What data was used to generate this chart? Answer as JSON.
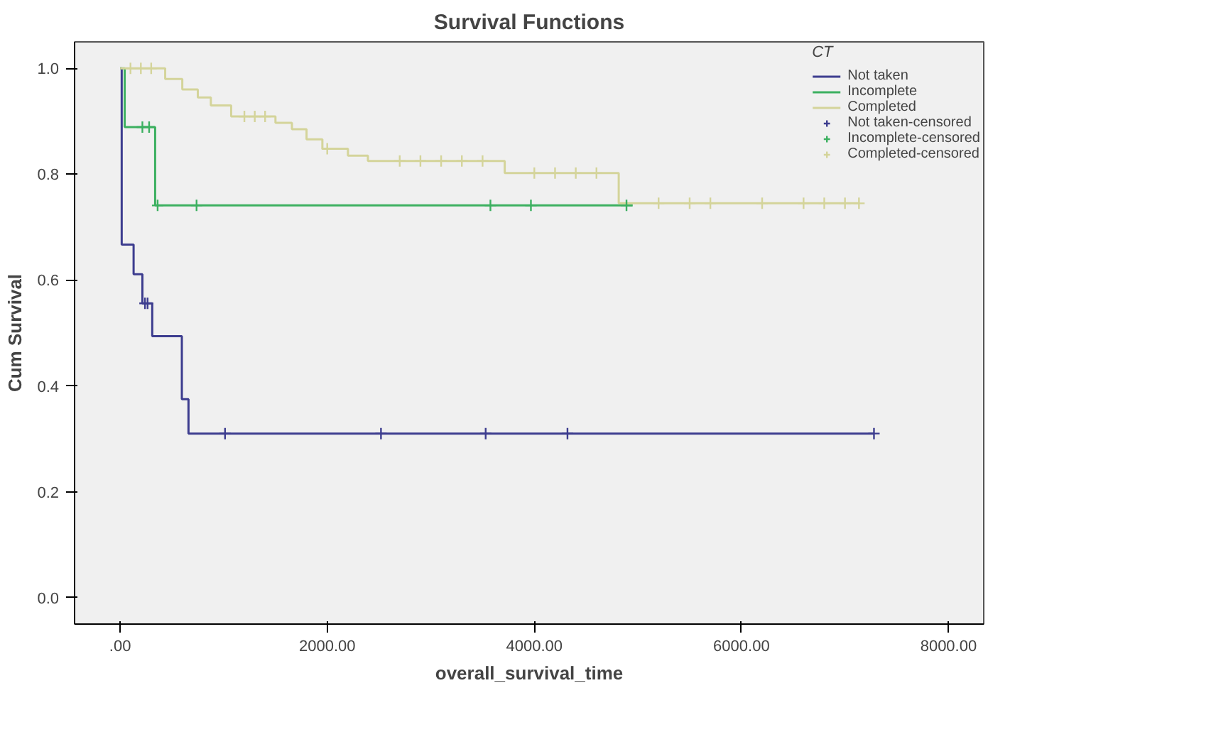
{
  "chart_data": {
    "type": "step",
    "title": "Survival Functions",
    "xlabel": "overall_survival_time",
    "ylabel": "Cum Survival",
    "legend_title": "CT",
    "legend": "top right",
    "grid": false,
    "xlim": [
      -440,
      8340
    ],
    "ylim": [
      -0.05,
      1.05
    ],
    "xticks": [
      {
        "value": 0,
        "label": ".00"
      },
      {
        "value": 2000,
        "label": "2000.00"
      },
      {
        "value": 4000,
        "label": "4000.00"
      },
      {
        "value": 6000,
        "label": "6000.00"
      },
      {
        "value": 8000,
        "label": "8000.00"
      }
    ],
    "yticks": [
      {
        "value": 0,
        "label": "0.0"
      },
      {
        "value": 0.2,
        "label": "0.2"
      },
      {
        "value": 0.4,
        "label": "0.4"
      },
      {
        "value": 0.6,
        "label": "0.6"
      },
      {
        "value": 0.8,
        "label": "0.8"
      },
      {
        "value": 1,
        "label": "1.0"
      }
    ],
    "series": [
      {
        "name": "Not taken",
        "color": "#3d3d8f",
        "x": [
          0,
          15,
          130,
          215,
          310,
          596,
          660,
          7280
        ],
        "values": [
          1.0,
          0.667,
          0.611,
          0.556,
          0.494,
          0.375,
          0.31,
          0.31
        ]
      },
      {
        "name": "Incomplete",
        "color": "#3cb060",
        "x": [
          0,
          44,
          338,
          4950
        ],
        "values": [
          1.0,
          0.889,
          0.741,
          0.741
        ]
      },
      {
        "name": "Completed",
        "color": "#d4d49a",
        "x": [
          0,
          435,
          600,
          750,
          876,
          1072,
          1500,
          1659,
          1800,
          1953,
          2200,
          2393,
          3714,
          4815,
          7135
        ],
        "values": [
          1.0,
          0.98,
          0.96,
          0.945,
          0.93,
          0.909,
          0.897,
          0.885,
          0.866,
          0.848,
          0.835,
          0.825,
          0.802,
          0.745,
          0.745
        ]
      },
      {
        "name": "Not taken-censored",
        "color": "#3d3d8f",
        "type": "scatter",
        "marker": "cross",
        "x": [
          240,
          265,
          1013,
          2519,
          3530,
          4320,
          7280
        ],
        "values": [
          0.556,
          0.556,
          0.31,
          0.31,
          0.31,
          0.31,
          0.31
        ]
      },
      {
        "name": "Incomplete-censored",
        "color": "#3cb060",
        "type": "scatter",
        "marker": "cross",
        "x": [
          215,
          280,
          362,
          738,
          3576,
          3967,
          4890
        ],
        "values": [
          0.889,
          0.889,
          0.741,
          0.741,
          0.741,
          0.741,
          0.741
        ]
      },
      {
        "name": "Completed-censored",
        "color": "#d4d49a",
        "type": "scatter",
        "marker": "cross",
        "x": [
          100,
          200,
          300,
          1200,
          1300,
          1400,
          2000,
          2700,
          2900,
          3100,
          3300,
          3500,
          4000,
          4200,
          4400,
          4600,
          5200,
          5500,
          5700,
          6200,
          6600,
          6800,
          7000,
          7135
        ],
        "values": [
          1.0,
          1.0,
          1.0,
          0.909,
          0.909,
          0.909,
          0.848,
          0.825,
          0.825,
          0.825,
          0.825,
          0.825,
          0.802,
          0.802,
          0.802,
          0.802,
          0.745,
          0.745,
          0.745,
          0.745,
          0.745,
          0.745,
          0.745,
          0.745
        ]
      }
    ]
  }
}
